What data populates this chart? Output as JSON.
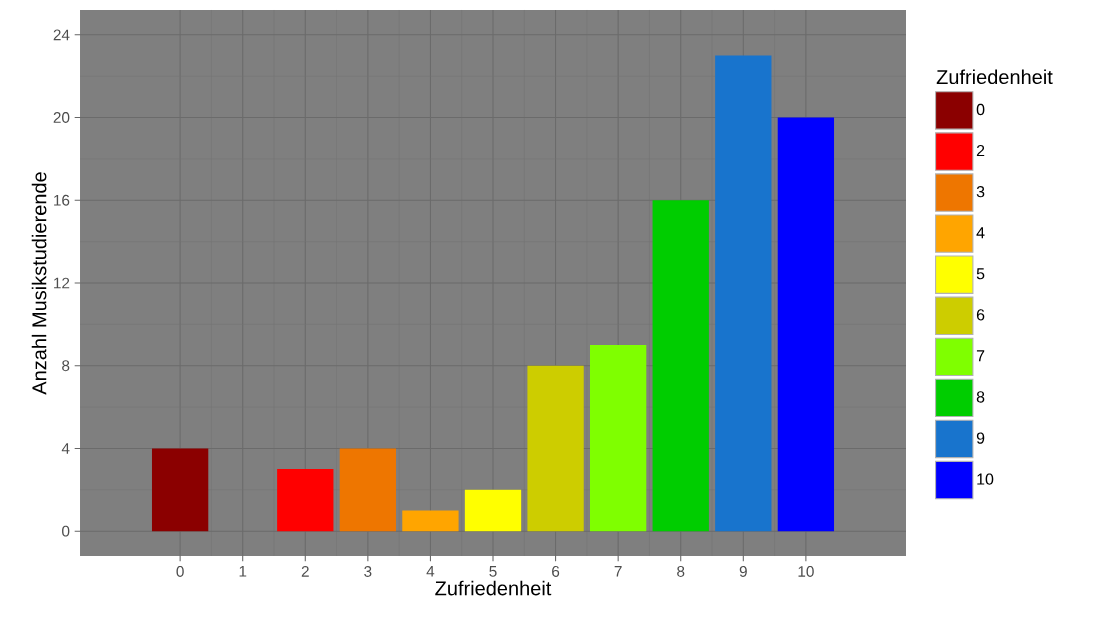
{
  "chart_data": {
    "type": "bar",
    "xlabel": "Zufriedenheit",
    "ylabel": "Anzahl Musikstudierende",
    "legend_title": "Zufriedenheit",
    "legend": "right",
    "grid": true,
    "xlim": [
      -1.6,
      11.6
    ],
    "xticks": [
      0,
      1,
      2,
      3,
      4,
      5,
      6,
      7,
      8,
      9,
      10
    ],
    "ylim": [
      -1.2,
      25.2
    ],
    "yticks": [
      0,
      4,
      8,
      12,
      16,
      20,
      24
    ],
    "series": [
      {
        "name": "0",
        "color": "#8b0000",
        "x": [
          0
        ],
        "values": [
          4
        ]
      },
      {
        "name": "2",
        "color": "#ff0000",
        "x": [
          2
        ],
        "values": [
          3
        ]
      },
      {
        "name": "3",
        "color": "#ee7600",
        "x": [
          3
        ],
        "values": [
          4
        ]
      },
      {
        "name": "4",
        "color": "#ffa500",
        "x": [
          4
        ],
        "values": [
          1
        ]
      },
      {
        "name": "5",
        "color": "#ffff00",
        "x": [
          5
        ],
        "values": [
          2
        ]
      },
      {
        "name": "6",
        "color": "#cdcd00",
        "x": [
          6
        ],
        "values": [
          8
        ]
      },
      {
        "name": "7",
        "color": "#7fff00",
        "x": [
          7
        ],
        "values": [
          9
        ]
      },
      {
        "name": "8",
        "color": "#00cd00",
        "x": [
          8
        ],
        "values": [
          16
        ]
      },
      {
        "name": "9",
        "color": "#1874cd",
        "x": [
          9
        ],
        "values": [
          23
        ]
      },
      {
        "name": "10",
        "color": "#0000ff",
        "x": [
          10
        ],
        "values": [
          20
        ]
      }
    ]
  }
}
